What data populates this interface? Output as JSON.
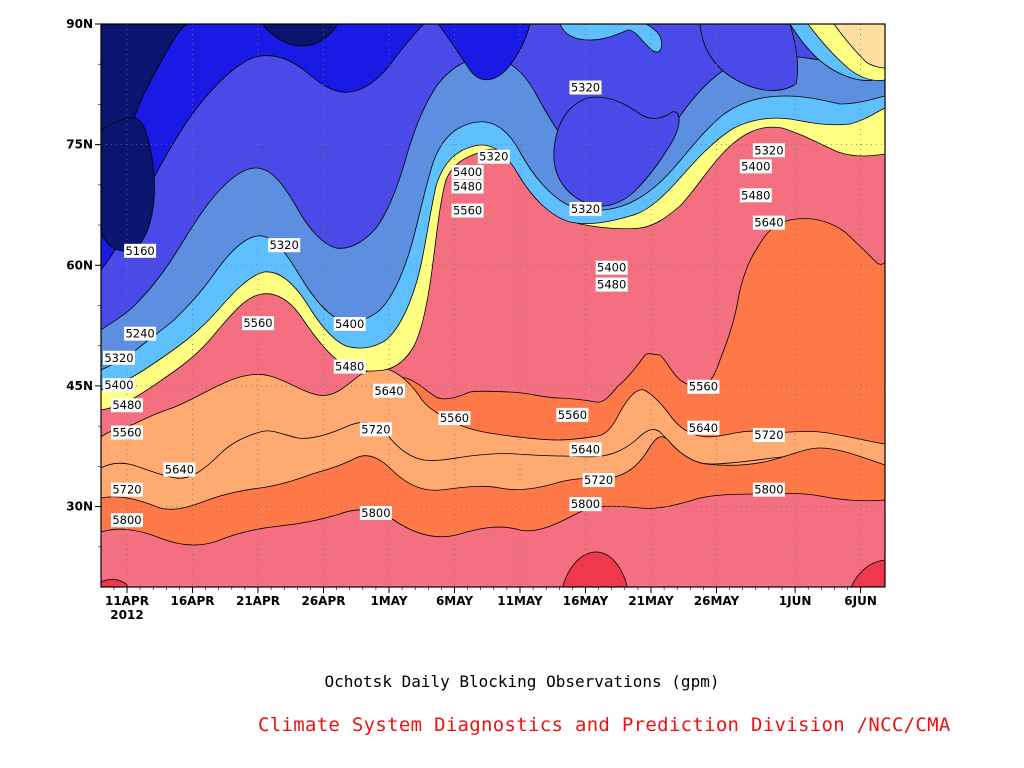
{
  "chart_data": {
    "type": "heatmap",
    "subtype": "filled-contour (time-latitude Hovmoller)",
    "title": "Ochotsk Daily Blocking Observations (gpm)",
    "credit": "Climate System Diagnostics and Prediction Division /NCC/CMA",
    "xlabel": "",
    "ylabel": "",
    "x_ticks": [
      "11APR",
      "16APR",
      "21APR",
      "26APR",
      "1MAY",
      "6MAY",
      "11MAY",
      "16MAY",
      "21MAY",
      "26MAY",
      "1JUN",
      "6JUN"
    ],
    "x_year_label": "2012",
    "x_range": [
      "9APR2012",
      "6JUN2012"
    ],
    "y_ticks": [
      "30N",
      "45N",
      "60N",
      "75N",
      "90N"
    ],
    "y_range": [
      20,
      90
    ],
    "grid": true,
    "contour_levels": [
      5160,
      5240,
      5320,
      5400,
      5480,
      5560,
      5640,
      5720,
      5800,
      5880
    ],
    "fill_colors": [
      "#0a1570",
      "#1a1ae6",
      "#4a4ae8",
      "#5c8fe0",
      "#5ec0ff",
      "#ffff82",
      "#ffe0a0",
      "#ffaa70",
      "#ff7848",
      "#f47080",
      "#f0384c"
    ],
    "contour_labels": [
      {
        "text": "5160",
        "date": "12APR",
        "lat": 61.8
      },
      {
        "text": "5240",
        "date": "12APR",
        "lat": 51.5
      },
      {
        "text": "5320",
        "date": "9APR",
        "lat": 48.5
      },
      {
        "text": "5400",
        "date": "9APR",
        "lat": 45.1
      },
      {
        "text": "5480",
        "date": "11APR",
        "lat": 42.6
      },
      {
        "text": "5560",
        "date": "11APR",
        "lat": 39.2
      },
      {
        "text": "5640",
        "date": "15APR",
        "lat": 34.6
      },
      {
        "text": "5720",
        "date": "11APR",
        "lat": 32.1
      },
      {
        "text": "5800",
        "date": "11APR",
        "lat": 28.3
      },
      {
        "text": "5560",
        "date": "21APR",
        "lat": 52.8
      },
      {
        "text": "5320",
        "date": "23APR",
        "lat": 62.5
      },
      {
        "text": "5400",
        "date": "28APR",
        "lat": 52.7
      },
      {
        "text": "5480",
        "date": "28APR",
        "lat": 47.4
      },
      {
        "text": "5640",
        "date": "1MAY",
        "lat": 44.4
      },
      {
        "text": "5720",
        "date": "30APR",
        "lat": 39.6
      },
      {
        "text": "5800",
        "date": "30APR",
        "lat": 29.2
      },
      {
        "text": "5560",
        "date": "6MAY",
        "lat": 41.0
      },
      {
        "text": "5320",
        "date": "9MAY",
        "lat": 73.5
      },
      {
        "text": "5400",
        "date": "7MAY",
        "lat": 71.6
      },
      {
        "text": "5480",
        "date": "7MAY",
        "lat": 69.8
      },
      {
        "text": "5560",
        "date": "7MAY",
        "lat": 66.8
      },
      {
        "text": "5320",
        "date": "16MAY",
        "lat": 82.1
      },
      {
        "text": "5320",
        "date": "16MAY",
        "lat": 67.0
      },
      {
        "text": "5400",
        "date": "18MAY",
        "lat": 59.7
      },
      {
        "text": "5480",
        "date": "18MAY",
        "lat": 57.6
      },
      {
        "text": "5560",
        "date": "15MAY",
        "lat": 41.4
      },
      {
        "text": "5640",
        "date": "16MAY",
        "lat": 37.1
      },
      {
        "text": "5720",
        "date": "17MAY",
        "lat": 33.3
      },
      {
        "text": "5800",
        "date": "16MAY",
        "lat": 30.3
      },
      {
        "text": "5560",
        "date": "25MAY",
        "lat": 44.9
      },
      {
        "text": "5640",
        "date": "25MAY",
        "lat": 39.8
      },
      {
        "text": "5320",
        "date": "30MAY",
        "lat": 74.3
      },
      {
        "text": "5400",
        "date": "29MAY",
        "lat": 72.3
      },
      {
        "text": "5480",
        "date": "29MAY",
        "lat": 68.7
      },
      {
        "text": "5640",
        "date": "30MAY",
        "lat": 65.3
      },
      {
        "text": "5720",
        "date": "30MAY",
        "lat": 38.9
      },
      {
        "text": "5800",
        "date": "30MAY",
        "lat": 32.1
      }
    ]
  }
}
